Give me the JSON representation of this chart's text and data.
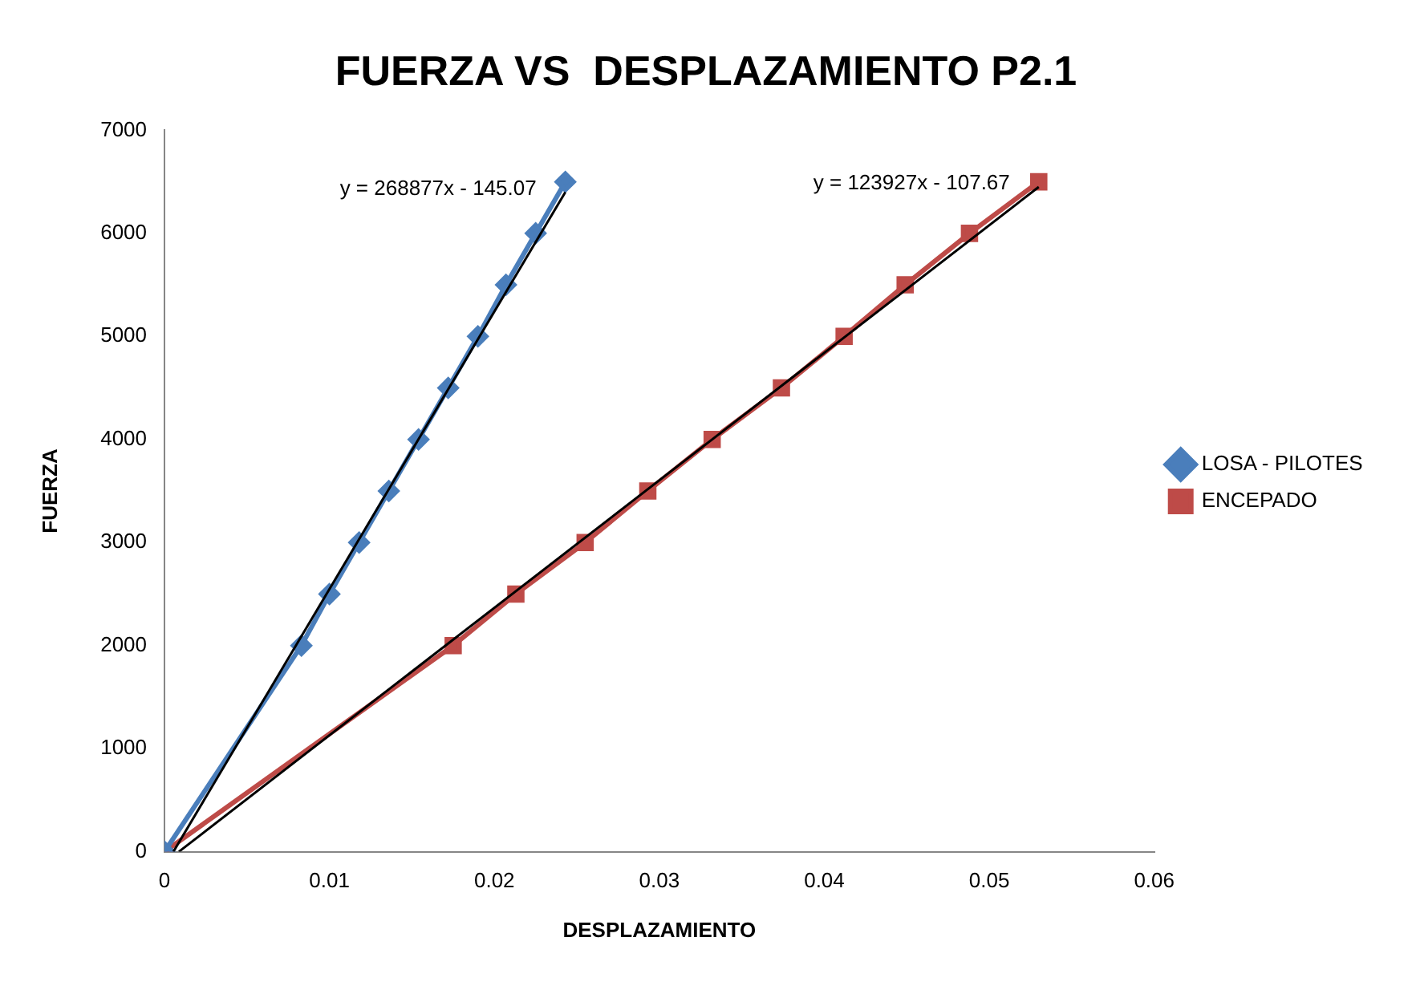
{
  "chart_data": {
    "type": "line",
    "title": "FUERZA VS  DESPLAZAMIENTO P2.1",
    "xlabel": "DESPLAZAMIENTO",
    "ylabel": "FUERZA",
    "xlim": [
      0,
      0.06
    ],
    "xticks": [
      0,
      0.01,
      0.02,
      0.03,
      0.04,
      0.05,
      0.06
    ],
    "ylim": [
      0,
      7000
    ],
    "yticks": [
      0,
      1000,
      2000,
      3000,
      4000,
      5000,
      6000,
      7000
    ],
    "grid": false,
    "legend": "right",
    "line_style": "solid",
    "series": [
      {
        "name": "LOSA - PILOTES",
        "color": "#4a7ebb",
        "marker": "diamond",
        "x": [
          0,
          0.0083,
          0.01,
          0.0118,
          0.0136,
          0.0154,
          0.0172,
          0.019,
          0.0207,
          0.0225,
          0.0243
        ],
        "values": [
          0,
          2000,
          2500,
          3000,
          3500,
          4000,
          4500,
          5000,
          5500,
          6000,
          6500
        ]
      },
      {
        "name": "ENCEPADO",
        "color": "#be4b48",
        "marker": "square",
        "x": [
          0,
          0.0175,
          0.0213,
          0.0255,
          0.0293,
          0.0332,
          0.0374,
          0.0412,
          0.0449,
          0.0488,
          0.053
        ],
        "values": [
          0,
          2000,
          2500,
          3000,
          3500,
          4000,
          4500,
          5000,
          5500,
          6000,
          6500
        ]
      },
      {
        "color": "#000000",
        "marker": "none",
        "x": [
          0.00054,
          0.0243
        ],
        "values": [
          0,
          6400
        ]
      },
      {
        "color": "#000000",
        "marker": "none",
        "x": [
          0.00087,
          0.053
        ],
        "values": [
          0,
          6450
        ]
      }
    ],
    "annotations": [
      "y = 268877x - 145.07",
      "y = 123927x - 107.67"
    ]
  }
}
